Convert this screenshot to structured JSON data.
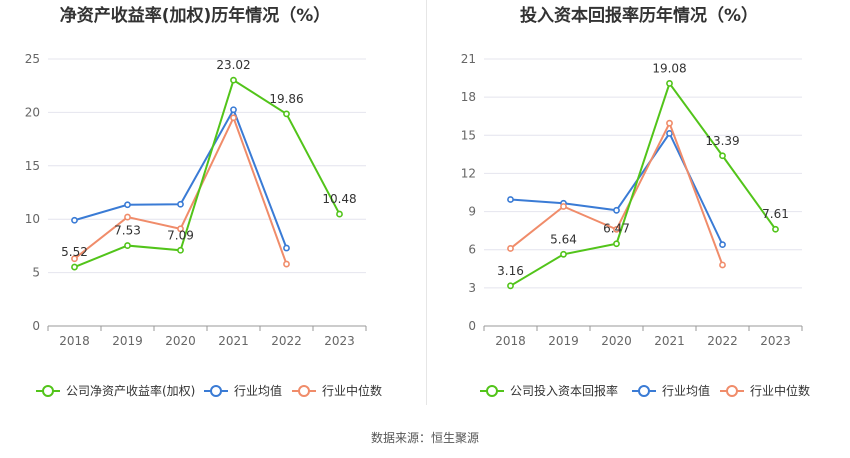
{
  "chart_data": [
    {
      "type": "line",
      "title": "净资产收益率(加权)历年情况（%）",
      "categories": [
        "2018",
        "2019",
        "2020",
        "2021",
        "2022",
        "2023"
      ],
      "ylim": [
        0,
        25
      ],
      "yticks": [
        0,
        5,
        10,
        15,
        20,
        25
      ],
      "grid": true,
      "legend_position": "bottom",
      "series": [
        {
          "name": "公司净资产收益率(加权)",
          "color": "#52c41a",
          "values": [
            5.52,
            7.53,
            7.09,
            23.02,
            19.86,
            10.48
          ],
          "show_labels": true
        },
        {
          "name": "行业均值",
          "color": "#3a7bd5",
          "values": [
            9.9,
            11.35,
            11.4,
            20.25,
            7.3,
            null
          ],
          "show_labels": false
        },
        {
          "name": "行业中位数",
          "color": "#f08c6a",
          "values": [
            6.3,
            10.2,
            9.1,
            19.5,
            5.8,
            null
          ],
          "show_labels": false
        }
      ]
    },
    {
      "type": "line",
      "title": "投入资本回报率历年情况（%）",
      "categories": [
        "2018",
        "2019",
        "2020",
        "2021",
        "2022",
        "2023"
      ],
      "ylim": [
        0,
        21
      ],
      "yticks": [
        0,
        3,
        6,
        9,
        12,
        15,
        18,
        21
      ],
      "grid": true,
      "legend_position": "bottom",
      "series": [
        {
          "name": "公司投入资本回报率",
          "color": "#52c41a",
          "values": [
            3.16,
            5.64,
            6.47,
            19.08,
            13.39,
            7.61
          ],
          "show_labels": true
        },
        {
          "name": "行业均值",
          "color": "#3a7bd5",
          "values": [
            9.95,
            9.65,
            9.1,
            15.15,
            6.4,
            null
          ],
          "show_labels": false
        },
        {
          "name": "行业中位数",
          "color": "#f08c6a",
          "values": [
            6.1,
            9.4,
            7.6,
            15.95,
            4.8,
            null
          ],
          "show_labels": false
        }
      ]
    }
  ],
  "footer": {
    "source": "数据来源：恒生聚源"
  }
}
